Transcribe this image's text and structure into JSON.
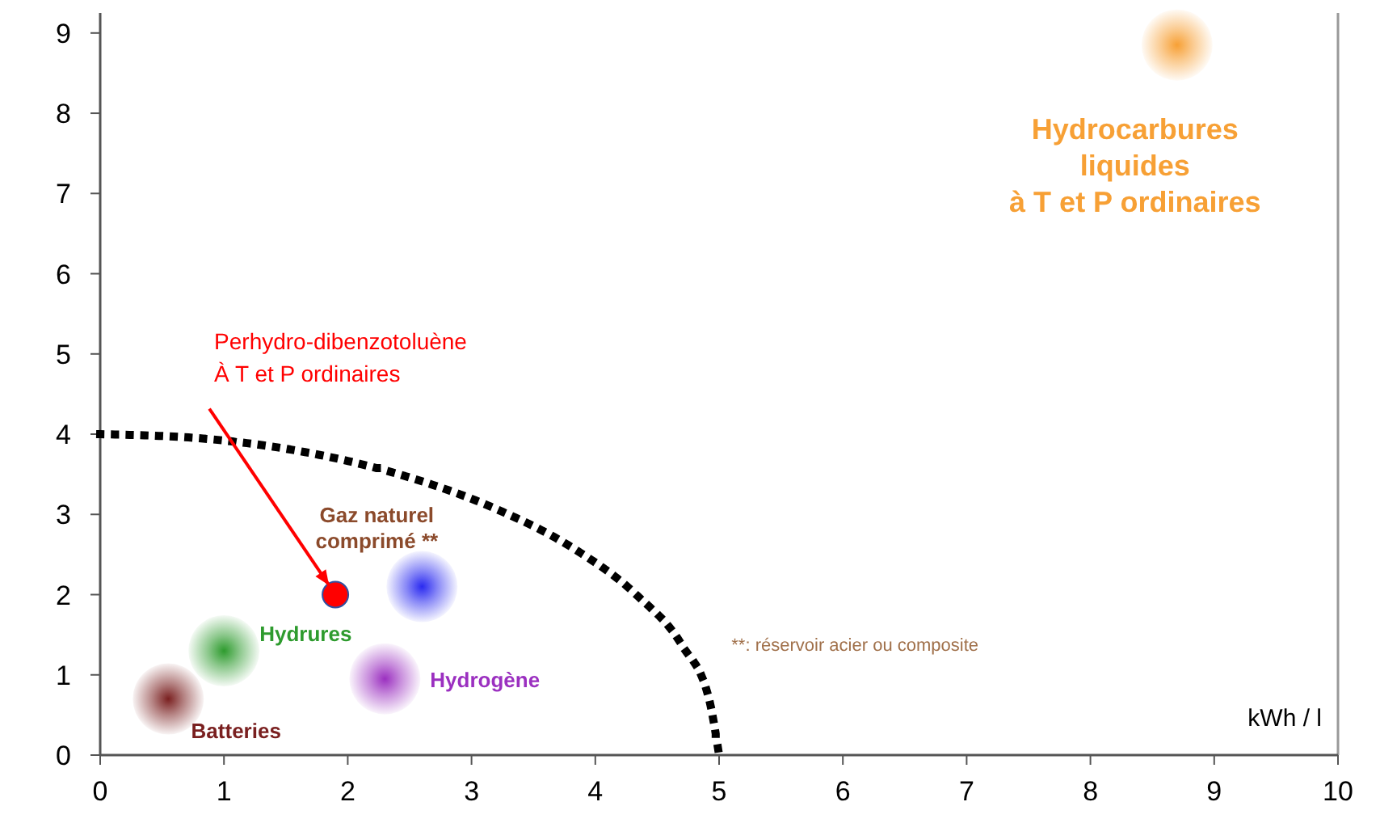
{
  "chart_data": {
    "type": "scatter",
    "xlabel": "kWh / l",
    "xlim": [
      0,
      10
    ],
    "ylim": [
      0,
      9.25
    ],
    "xticks": [
      0,
      1,
      2,
      3,
      4,
      5,
      6,
      7,
      8,
      9,
      10
    ],
    "yticks": [
      0,
      1,
      2,
      3,
      4,
      5,
      6,
      7,
      8,
      9
    ],
    "grid": false,
    "marker": "circle",
    "series": [
      {
        "name": "Hydrocarbures\nliquides\nà T et P ordinaires",
        "color": "#f7a035",
        "x": [
          8.7
        ],
        "values": [
          8.85
        ]
      },
      {
        "name": "Gaz naturel\ncomprimé  **",
        "color": "#2a2af0",
        "x": [
          2.6
        ],
        "values": [
          2.1
        ]
      },
      {
        "name": "Hydrures",
        "color": "#2e9b2e",
        "x": [
          1.0
        ],
        "values": [
          1.3
        ]
      },
      {
        "name": "Batteries",
        "color": "#7a2020",
        "x": [
          0.55
        ],
        "values": [
          0.7
        ]
      },
      {
        "name": "Hydrogène",
        "color": "#9b30c0",
        "x": [
          2.3
        ],
        "values": [
          0.95
        ]
      },
      {
        "type": "line",
        "color": "#000000",
        "line_style": "dotted",
        "marker": "none",
        "x": [
          0,
          0.87,
          1.71,
          2.5,
          3.21,
          3.83,
          4.33,
          4.7,
          4.92,
          5
        ],
        "values": [
          4,
          3.94,
          3.76,
          3.46,
          3.06,
          2.57,
          2,
          1.37,
          0.69,
          0
        ]
      },
      {
        "color": "#ff0000",
        "x": [
          1.9
        ],
        "values": [
          2.0
        ]
      }
    ],
    "annotations": [
      {
        "text": "Perhydro-dibenzotoluène\nÀ T et P ordinaires",
        "x": 1.9,
        "y": 2.0
      },
      "**: réservoir acier ou composite"
    ]
  }
}
